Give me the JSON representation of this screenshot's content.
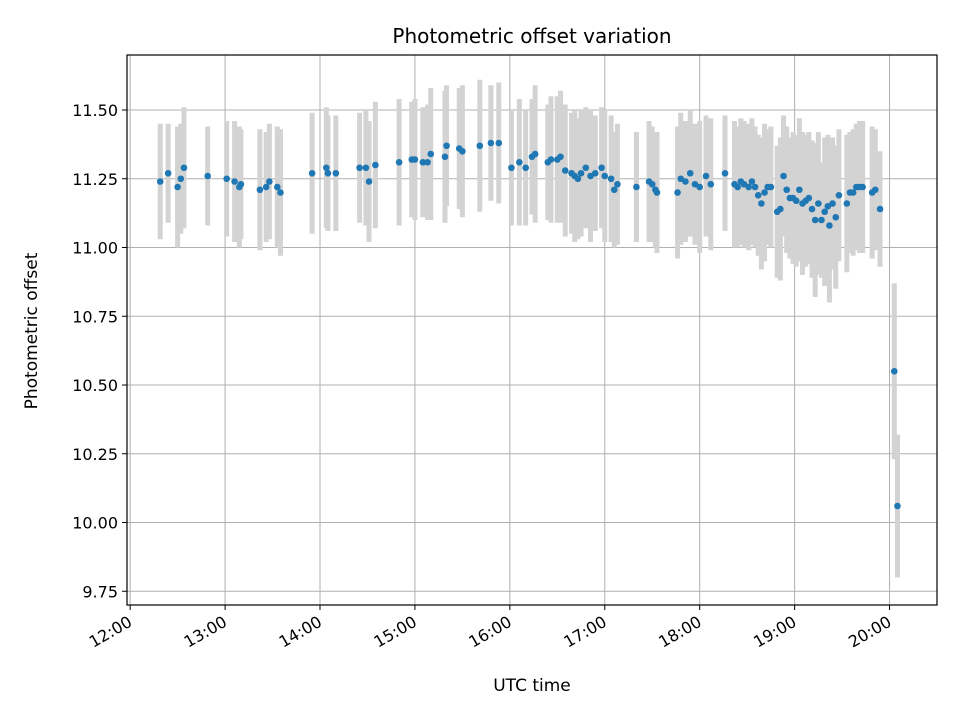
{
  "chart_data": {
    "type": "scatter",
    "title": "Photometric offset variation",
    "xlabel": "UTC time",
    "ylabel": "Photometric offset",
    "xlim": [
      "11:58",
      "20:30"
    ],
    "ylim": [
      9.7,
      11.7
    ],
    "x_ticks": [
      "12:00",
      "13:00",
      "14:00",
      "15:00",
      "16:00",
      "17:00",
      "18:00",
      "19:00",
      "20:00"
    ],
    "y_ticks": [
      "9.75",
      "10.00",
      "10.25",
      "10.50",
      "10.75",
      "11.00",
      "11.25",
      "11.50"
    ],
    "grid": true,
    "marker_color": "#1f77b4",
    "errorbar_color": "#d3d3d3",
    "series": [
      {
        "x": [
          "12:19",
          "12:24",
          "12:30",
          "12:32",
          "12:34",
          "12:49",
          "13:01",
          "13:06",
          "13:09",
          "13:10",
          "13:22",
          "13:26",
          "13:28",
          "13:33",
          "13:35",
          "13:55",
          "14:04",
          "14:05",
          "14:10",
          "14:25",
          "14:29",
          "14:31",
          "14:35",
          "14:50",
          "14:58",
          "15:00",
          "15:05",
          "15:08",
          "15:10",
          "15:19",
          "15:20",
          "15:28",
          "15:30",
          "15:41",
          "15:48",
          "15:53",
          "16:01",
          "16:06",
          "16:10",
          "16:14",
          "16:16",
          "16:24",
          "16:26",
          "16:30",
          "16:32",
          "16:35",
          "16:39",
          "16:41",
          "16:43",
          "16:45",
          "16:48",
          "16:51",
          "16:54",
          "16:58",
          "17:00",
          "17:04",
          "17:06",
          "17:08",
          "17:20",
          "17:28",
          "17:30",
          "17:32",
          "17:33",
          "17:46",
          "17:48",
          "17:51",
          "17:54",
          "17:57",
          "18:00",
          "18:04",
          "18:07",
          "18:16",
          "18:22",
          "18:24",
          "18:26",
          "18:28",
          "18:31",
          "18:33",
          "18:35",
          "18:37",
          "18:39",
          "18:41",
          "18:43",
          "18:45",
          "18:49",
          "18:51",
          "18:53",
          "18:55",
          "18:57",
          "18:59",
          "19:01",
          "19:03",
          "19:05",
          "19:07",
          "19:09",
          "19:11",
          "19:13",
          "19:15",
          "19:17",
          "19:19",
          "19:21",
          "19:22",
          "19:24",
          "19:26",
          "19:28",
          "19:33",
          "19:35",
          "19:37",
          "19:39",
          "19:41",
          "19:43",
          "19:49",
          "19:51",
          "19:54",
          "20:03",
          "20:05"
        ],
        "y": [
          11.24,
          11.27,
          11.22,
          11.25,
          11.29,
          11.26,
          11.25,
          11.24,
          11.22,
          11.23,
          11.21,
          11.22,
          11.24,
          11.22,
          11.2,
          11.27,
          11.29,
          11.27,
          11.27,
          11.29,
          11.29,
          11.24,
          11.3,
          11.31,
          11.32,
          11.32,
          11.31,
          11.31,
          11.34,
          11.33,
          11.37,
          11.36,
          11.35,
          11.37,
          11.38,
          11.38,
          11.29,
          11.31,
          11.29,
          11.33,
          11.34,
          11.31,
          11.32,
          11.32,
          11.33,
          11.28,
          11.27,
          11.26,
          11.25,
          11.27,
          11.29,
          11.26,
          11.27,
          11.29,
          11.26,
          11.25,
          11.21,
          11.23,
          11.22,
          11.24,
          11.23,
          11.21,
          11.2,
          11.2,
          11.25,
          11.24,
          11.27,
          11.23,
          11.22,
          11.26,
          11.23,
          11.27,
          11.23,
          11.22,
          11.24,
          11.23,
          11.22,
          11.24,
          11.22,
          11.19,
          11.16,
          11.2,
          11.22,
          11.22,
          11.13,
          11.14,
          11.26,
          11.21,
          11.18,
          11.18,
          11.17,
          11.21,
          11.16,
          11.17,
          11.18,
          11.14,
          11.1,
          11.16,
          11.1,
          11.13,
          11.15,
          11.08,
          11.16,
          11.11,
          11.19,
          11.16,
          11.2,
          11.2,
          11.22,
          11.22,
          11.22,
          11.2,
          11.21,
          11.14,
          10.55,
          10.06
        ],
        "yerr": [
          0.21,
          0.18,
          0.22,
          0.2,
          0.22,
          0.18,
          0.21,
          0.22,
          0.22,
          0.2,
          0.22,
          0.2,
          0.21,
          0.22,
          0.23,
          0.22,
          0.22,
          0.21,
          0.21,
          0.2,
          0.21,
          0.22,
          0.23,
          0.23,
          0.21,
          0.22,
          0.2,
          0.21,
          0.24,
          0.24,
          0.22,
          0.22,
          0.24,
          0.24,
          0.21,
          0.22,
          0.21,
          0.23,
          0.21,
          0.21,
          0.25,
          0.21,
          0.23,
          0.23,
          0.24,
          0.24,
          0.22,
          0.24,
          0.22,
          0.23,
          0.22,
          0.24,
          0.21,
          0.22,
          0.24,
          0.23,
          0.21,
          0.22,
          0.2,
          0.22,
          0.21,
          0.21,
          0.22,
          0.24,
          0.24,
          0.22,
          0.23,
          0.22,
          0.24,
          0.22,
          0.24,
          0.21,
          0.23,
          0.22,
          0.23,
          0.23,
          0.23,
          0.23,
          0.22,
          0.22,
          0.24,
          0.25,
          0.21,
          0.22,
          0.24,
          0.26,
          0.22,
          0.23,
          0.22,
          0.24,
          0.24,
          0.26,
          0.26,
          0.24,
          0.24,
          0.25,
          0.28,
          0.26,
          0.21,
          0.27,
          0.26,
          0.28,
          0.24,
          0.26,
          0.24,
          0.25,
          0.22,
          0.23,
          0.23,
          0.24,
          0.24,
          0.24,
          0.22,
          0.21,
          0.32,
          0.26
        ]
      }
    ]
  }
}
